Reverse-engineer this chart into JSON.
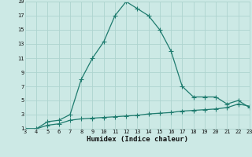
{
  "xlabel": "Humidex (Indice chaleur)",
  "background_color": "#cce9e5",
  "grid_color": "#aed4cf",
  "line_color": "#1e7b6e",
  "marker_color": "#1e7b6e",
  "x_upper": [
    3,
    4,
    5,
    6,
    7,
    8,
    9,
    10,
    11,
    12,
    13,
    14,
    15,
    16,
    17,
    18,
    19,
    20,
    21,
    22,
    23
  ],
  "y_upper": [
    1,
    1,
    2,
    2.2,
    3,
    8,
    11,
    13.3,
    17,
    19,
    18,
    17,
    15,
    12,
    7,
    5.5,
    5.5,
    5.5,
    4.5,
    5,
    4
  ],
  "x_lower": [
    3,
    4,
    5,
    6,
    7,
    8,
    9,
    10,
    11,
    12,
    13,
    14,
    15,
    16,
    17,
    18,
    19,
    20,
    21,
    22,
    23
  ],
  "y_lower": [
    1,
    1,
    1.5,
    1.7,
    2.2,
    2.4,
    2.5,
    2.6,
    2.7,
    2.8,
    2.9,
    3.1,
    3.2,
    3.3,
    3.5,
    3.6,
    3.7,
    3.8,
    4.0,
    4.5,
    4.2
  ],
  "xlim": [
    3,
    23
  ],
  "ylim": [
    1,
    19
  ],
  "xticks": [
    3,
    4,
    5,
    6,
    7,
    8,
    9,
    10,
    11,
    12,
    13,
    14,
    15,
    16,
    17,
    18,
    19,
    20,
    21,
    22,
    23
  ],
  "yticks": [
    1,
    3,
    5,
    7,
    9,
    11,
    13,
    15,
    17,
    19
  ],
  "tick_fontsize": 5.0,
  "xlabel_fontsize": 6.5,
  "line_width": 0.9,
  "marker_size": 2.0
}
